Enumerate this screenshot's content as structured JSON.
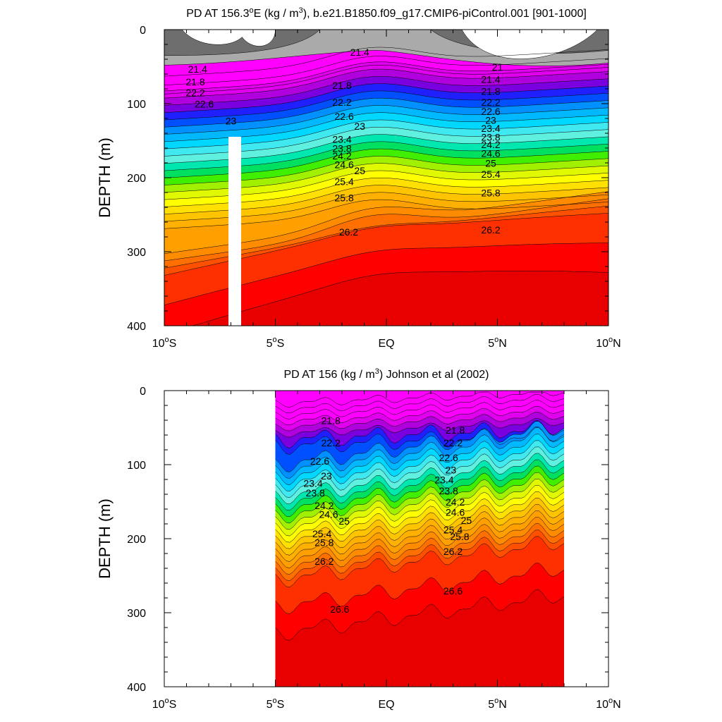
{
  "chart_data": [
    {
      "type": "contour",
      "title_prefix": "PD AT 156.3",
      "title_sup_deg": "o",
      "title_middle": "E (kg / m",
      "title_sup_cube": "3",
      "title_suffix": "), b.e21.B1850.f09_g17.CMIP6-piControl.001 [901-1000]",
      "ylabel": "DEPTH (m)",
      "xlim": [
        -10,
        10
      ],
      "ylim": [
        0,
        400
      ],
      "x_ticks": [
        {
          "value": -10,
          "num": "10",
          "hemi": "S"
        },
        {
          "value": -5,
          "num": "5",
          "hemi": "S"
        },
        {
          "value": 0,
          "num": "EQ",
          "hemi": ""
        },
        {
          "value": 5,
          "num": "5",
          "hemi": "N"
        },
        {
          "value": 10,
          "num": "10",
          "hemi": "N"
        }
      ],
      "y_ticks": [
        0,
        100,
        200,
        300,
        400
      ],
      "contour_levels": [
        21.0,
        21.2,
        21.4,
        21.6,
        21.8,
        22.0,
        22.2,
        22.4,
        22.6,
        22.8,
        23.0,
        23.2,
        23.4,
        23.6,
        23.8,
        24.0,
        24.2,
        24.4,
        24.6,
        24.8,
        25.0,
        25.2,
        25.4,
        25.6,
        25.8,
        26.0,
        26.2,
        26.4,
        26.6
      ],
      "labels": [
        {
          "text": "21.4",
          "x": -1.2,
          "y": 35
        },
        {
          "text": "21.4",
          "x": -8.5,
          "y": 58
        },
        {
          "text": "21.8",
          "x": -8.6,
          "y": 75
        },
        {
          "text": "22.2",
          "x": -8.6,
          "y": 90
        },
        {
          "text": "22.6",
          "x": -8.2,
          "y": 105
        },
        {
          "text": "23",
          "x": -7.0,
          "y": 128
        },
        {
          "text": "21.8",
          "x": -2.0,
          "y": 80
        },
        {
          "text": "22.2",
          "x": -2.0,
          "y": 103
        },
        {
          "text": "22.6",
          "x": -1.9,
          "y": 122
        },
        {
          "text": "23",
          "x": -1.2,
          "y": 135
        },
        {
          "text": "23.4",
          "x": -2.0,
          "y": 153
        },
        {
          "text": "23.8",
          "x": -2.0,
          "y": 165
        },
        {
          "text": "24.2",
          "x": -2.0,
          "y": 175
        },
        {
          "text": "24.6",
          "x": -1.9,
          "y": 187
        },
        {
          "text": "25",
          "x": -1.2,
          "y": 195
        },
        {
          "text": "25.4",
          "x": -1.9,
          "y": 210
        },
        {
          "text": "25.8",
          "x": -1.9,
          "y": 232
        },
        {
          "text": "26.2",
          "x": -1.7,
          "y": 278
        },
        {
          "text": "21",
          "x": 5.0,
          "y": 55
        },
        {
          "text": "21.4",
          "x": 4.7,
          "y": 72
        },
        {
          "text": "21.8",
          "x": 4.7,
          "y": 88
        },
        {
          "text": "22.2",
          "x": 4.7,
          "y": 103
        },
        {
          "text": "22.6",
          "x": 4.7,
          "y": 115
        },
        {
          "text": "23",
          "x": 4.7,
          "y": 127
        },
        {
          "text": "23.4",
          "x": 4.7,
          "y": 138
        },
        {
          "text": "23.8",
          "x": 4.7,
          "y": 150
        },
        {
          "text": "24.2",
          "x": 4.7,
          "y": 160
        },
        {
          "text": "24.6",
          "x": 4.7,
          "y": 172
        },
        {
          "text": "25",
          "x": 4.7,
          "y": 185
        },
        {
          "text": "25.4",
          "x": 4.7,
          "y": 200
        },
        {
          "text": "25.8",
          "x": 4.7,
          "y": 225
        },
        {
          "text": "26.2",
          "x": 4.7,
          "y": 275
        }
      ]
    },
    {
      "type": "contour",
      "title_prefix": "PD AT 156 (kg / m",
      "title_sup": "3",
      "title_suffix": ") Johnson et al (2002)",
      "ylabel": "DEPTH (m)",
      "xlim": [
        -10,
        10
      ],
      "ylim": [
        0,
        400
      ],
      "data_extent_lat": [
        -5,
        8
      ],
      "x_ticks": [
        {
          "value": -10,
          "num": "10",
          "hemi": "S"
        },
        {
          "value": -5,
          "num": "5",
          "hemi": "S"
        },
        {
          "value": 0,
          "num": "EQ",
          "hemi": ""
        },
        {
          "value": 5,
          "num": "5",
          "hemi": "N"
        },
        {
          "value": 10,
          "num": "10",
          "hemi": "N"
        }
      ],
      "y_ticks": [
        0,
        100,
        200,
        300,
        400
      ],
      "contour_levels": [
        21.0,
        21.2,
        21.4,
        21.6,
        21.8,
        22.0,
        22.2,
        22.4,
        22.6,
        22.8,
        23.0,
        23.2,
        23.4,
        23.6,
        23.8,
        24.0,
        24.2,
        24.4,
        24.6,
        24.8,
        25.0,
        25.2,
        25.4,
        25.6,
        25.8,
        26.0,
        26.2,
        26.4,
        26.6
      ],
      "labels": [
        {
          "text": "21.8",
          "x": -2.5,
          "y": 45
        },
        {
          "text": "22.2",
          "x": -2.5,
          "y": 75
        },
        {
          "text": "22.6",
          "x": -3.0,
          "y": 100
        },
        {
          "text": "23",
          "x": -2.7,
          "y": 120
        },
        {
          "text": "23.4",
          "x": -3.3,
          "y": 130
        },
        {
          "text": "23.8",
          "x": -3.2,
          "y": 143
        },
        {
          "text": "24.2",
          "x": -2.8,
          "y": 160
        },
        {
          "text": "24.6",
          "x": -2.6,
          "y": 172
        },
        {
          "text": "25",
          "x": -1.9,
          "y": 181
        },
        {
          "text": "25.4",
          "x": -2.9,
          "y": 198
        },
        {
          "text": "25.8",
          "x": -2.8,
          "y": 210
        },
        {
          "text": "26.2",
          "x": -2.8,
          "y": 235
        },
        {
          "text": "26.6",
          "x": -2.1,
          "y": 300
        },
        {
          "text": "21.8",
          "x": 3.1,
          "y": 58
        },
        {
          "text": "22.2",
          "x": 3.0,
          "y": 75
        },
        {
          "text": "22.6",
          "x": 2.8,
          "y": 95
        },
        {
          "text": "23",
          "x": 2.9,
          "y": 112
        },
        {
          "text": "23.4",
          "x": 2.6,
          "y": 125
        },
        {
          "text": "23.8",
          "x": 2.8,
          "y": 140
        },
        {
          "text": "24.2",
          "x": 3.1,
          "y": 155
        },
        {
          "text": "24.6",
          "x": 3.1,
          "y": 169
        },
        {
          "text": "25",
          "x": 3.6,
          "y": 180
        },
        {
          "text": "25.4",
          "x": 3.0,
          "y": 193
        },
        {
          "text": "25.8",
          "x": 3.3,
          "y": 202
        },
        {
          "text": "26.2",
          "x": 3.0,
          "y": 222
        },
        {
          "text": "26.6",
          "x": 3.0,
          "y": 275
        }
      ]
    }
  ]
}
